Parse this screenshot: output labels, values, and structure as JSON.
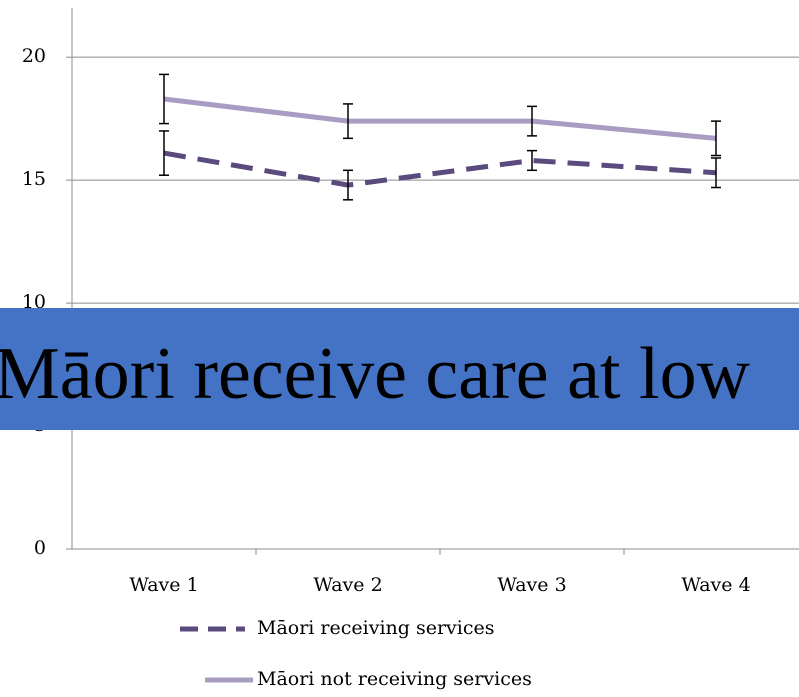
{
  "chart_data": {
    "type": "line",
    "categories": [
      "Wave 1",
      "Wave 2",
      "Wave 3",
      "Wave 4"
    ],
    "series": [
      {
        "name": "Māori receiving services",
        "color": "#5a4a7e",
        "dash": true,
        "values": [
          16.1,
          14.8,
          15.8,
          15.3
        ],
        "errors": [
          0.9,
          0.6,
          0.4,
          0.6
        ]
      },
      {
        "name": "Māori not receiving services",
        "color": "#a99cc3",
        "dash": false,
        "values": [
          18.3,
          17.4,
          17.4,
          16.7
        ],
        "errors": [
          1.0,
          0.7,
          0.6,
          0.7
        ]
      }
    ],
    "ylim": [
      0,
      22
    ],
    "yticks": [
      0,
      5,
      10,
      15,
      20
    ],
    "grid": true,
    "legend": "bottom",
    "annotation": "Māori receive care at low"
  }
}
